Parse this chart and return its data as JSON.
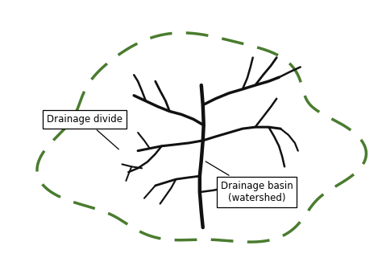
{
  "background_color": "#ffffff",
  "outline_color": "#4a7c2f",
  "river_color": "#111111",
  "label_divide": "Drainage divide",
  "label_basin": "Drainage basin\n(watershed)",
  "figsize": [
    4.74,
    3.36
  ],
  "dpi": 100
}
